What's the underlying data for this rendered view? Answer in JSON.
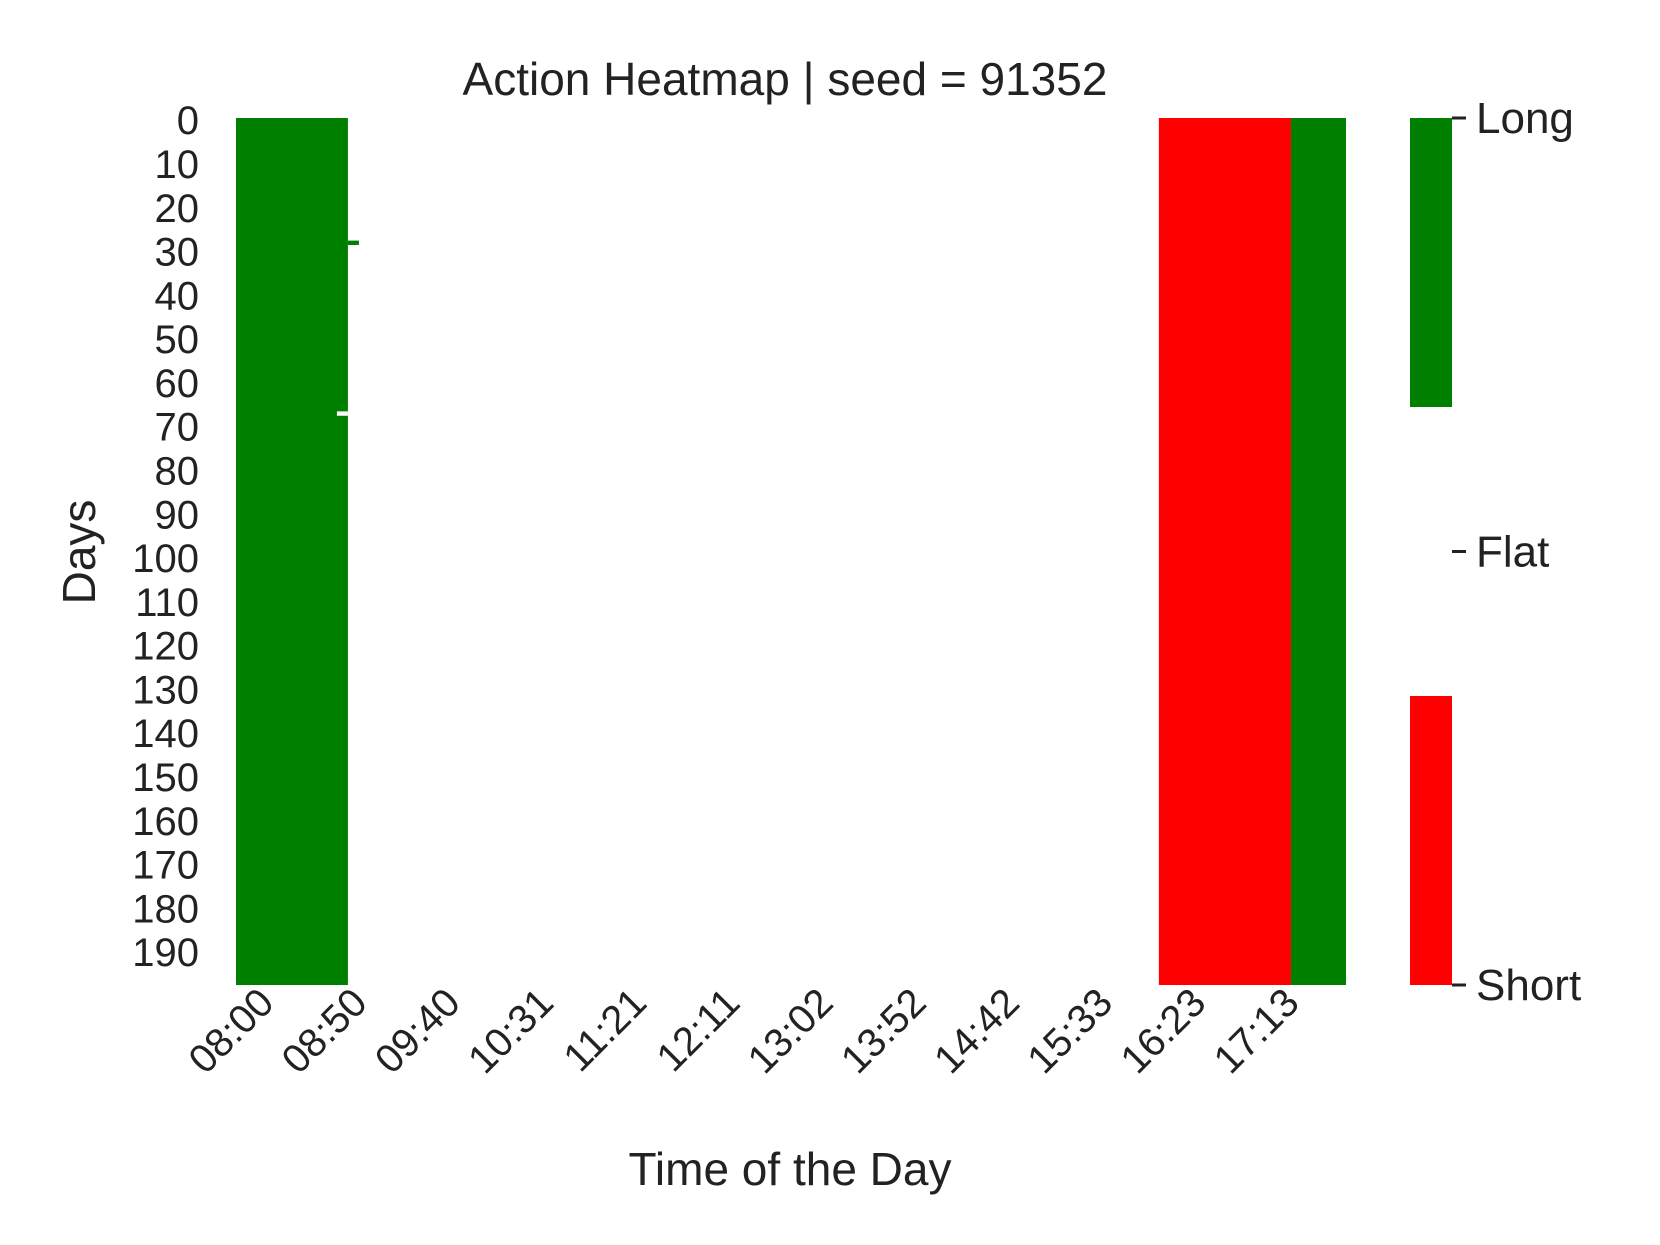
{
  "chart_data": {
    "type": "heatmap",
    "title": "Action Heatmap | seed = 91352",
    "xlabel": "Time of the Day",
    "ylabel": "Days",
    "x_tick_labels": [
      "08:00",
      "08:50",
      "09:40",
      "10:31",
      "11:21",
      "12:11",
      "13:02",
      "13:52",
      "14:42",
      "15:33",
      "16:23",
      "17:13"
    ],
    "y_tick_labels": [
      "0",
      "10",
      "20",
      "30",
      "40",
      "50",
      "60",
      "70",
      "80",
      "90",
      "100",
      "110",
      "120",
      "130",
      "140",
      "150",
      "160",
      "170",
      "180",
      "190"
    ],
    "days_range": [
      0,
      198
    ],
    "time_range": [
      "08:00",
      "18:05"
    ],
    "value_levels": [
      {
        "value": 1,
        "label": "Long",
        "color": "#008000"
      },
      {
        "value": 0,
        "label": "Flat",
        "color": "#ffffff"
      },
      {
        "value": -1,
        "label": "Short",
        "color": "#ff0000"
      }
    ],
    "blocks": [
      {
        "time_start": "08:00",
        "time_end": "09:01",
        "day_start": 0,
        "day_end": 198,
        "action": "Long"
      },
      {
        "time_start": "09:01",
        "time_end": "09:07",
        "day_start": 28,
        "day_end": 29,
        "action": "Long"
      },
      {
        "time_start": "08:55",
        "time_end": "09:01",
        "day_start": 67,
        "day_end": 68,
        "action": "Flat"
      },
      {
        "time_start": "16:23",
        "time_end": "17:35",
        "day_start": 0,
        "day_end": 198,
        "action": "Short"
      },
      {
        "time_start": "17:35",
        "time_end": "19:01",
        "day_start": 0,
        "day_end": 198,
        "action": "Long"
      }
    ],
    "colorbar": {
      "ticks": [
        "Long",
        "Flat",
        "Short"
      ]
    }
  }
}
